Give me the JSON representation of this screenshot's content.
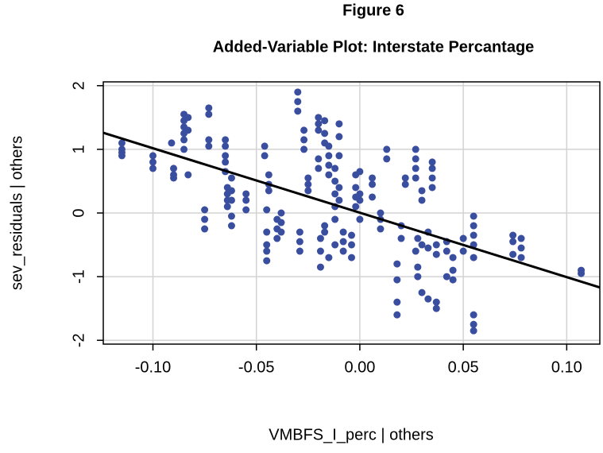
{
  "chart_data": {
    "type": "scatter",
    "title": "Figure 6",
    "subtitle": "Added-Variable Plot: Interstate Percantage",
    "x_label": "VMBFS_I_perc | others",
    "y_label": "sev_residuals  | others",
    "xlim": [
      -0.124,
      0.116
    ],
    "ylim": [
      -2.06,
      2.06
    ],
    "xticks": [
      {
        "value": -0.1,
        "label": "-0.10"
      },
      {
        "value": -0.05,
        "label": "-0.05"
      },
      {
        "value": 0,
        "label": "0.00"
      },
      {
        "value": 0.05,
        "label": "0.05"
      },
      {
        "value": 0.1,
        "label": "0.10"
      }
    ],
    "yticks": [
      -2,
      -1,
      0,
      1,
      2
    ],
    "grid": true,
    "series": [
      {
        "color": "#3a4e9f",
        "x": [
          -0.115,
          -0.115,
          -0.115,
          -0.115,
          -0.1,
          -0.1,
          -0.1,
          -0.091,
          -0.09,
          -0.09,
          -0.09,
          -0.085,
          -0.085,
          -0.085,
          -0.085,
          -0.085,
          -0.085,
          -0.083,
          -0.083,
          -0.083,
          -0.075,
          -0.075,
          -0.075,
          -0.073,
          -0.073,
          -0.073,
          -0.073,
          -0.065,
          -0.065,
          -0.065,
          -0.065,
          -0.065,
          -0.064,
          -0.064,
          -0.064,
          -0.064,
          -0.062,
          -0.062,
          -0.062,
          -0.062,
          -0.062,
          -0.055,
          -0.055,
          -0.055,
          -0.046,
          -0.046,
          -0.045,
          -0.045,
          -0.045,
          -0.045,
          -0.045,
          -0.044,
          -0.044,
          -0.044,
          -0.04,
          -0.04,
          -0.04,
          -0.038,
          -0.038,
          -0.038,
          -0.03,
          -0.03,
          -0.03,
          -0.029,
          -0.029,
          -0.029,
          -0.027,
          -0.027,
          -0.027,
          -0.025,
          -0.025,
          -0.025,
          -0.02,
          -0.02,
          -0.02,
          -0.02,
          -0.02,
          -0.019,
          -0.019,
          -0.019,
          -0.017,
          -0.017,
          -0.017,
          -0.017,
          -0.017,
          -0.015,
          -0.015,
          -0.015,
          -0.015,
          -0.015,
          -0.012,
          -0.012,
          -0.012,
          -0.012,
          -0.012,
          -0.012,
          -0.01,
          -0.01,
          -0.01,
          -0.01,
          -0.01,
          -0.008,
          -0.008,
          -0.008,
          -0.004,
          -0.004,
          -0.004,
          -0.002,
          -0.002,
          -0.002,
          -0.002,
          0,
          0,
          0,
          0,
          0.006,
          0.006,
          0.006,
          0.01,
          0.01,
          0.01,
          0.013,
          0.013,
          0.018,
          0.018,
          0.018,
          0.018,
          0.02,
          0.02,
          0.022,
          0.022,
          0.027,
          0.027,
          0.027,
          0.027,
          0.027,
          0.028,
          0.028,
          0.028,
          0.03,
          0.03,
          0.03,
          0.03,
          0.033,
          0.033,
          0.033,
          0.035,
          0.035,
          0.035,
          0.035,
          0.037,
          0.037,
          0.037,
          0.037,
          0.042,
          0.042,
          0.042,
          0.045,
          0.045,
          0.045,
          0.05,
          0.05,
          0.055,
          0.055,
          0.055,
          0.055,
          0.055,
          0.055,
          0.055,
          0.055,
          0.074,
          0.074,
          0.074,
          0.078,
          0.078,
          0.078,
          0.107,
          0.107
        ],
        "values": [
          1.1,
          1.0,
          0.95,
          0.9,
          0.9,
          0.8,
          0.7,
          1.1,
          0.7,
          0.6,
          0.55,
          1.55,
          1.45,
          1.35,
          1.25,
          1.15,
          1.0,
          1.5,
          1.3,
          0.6,
          0.05,
          -0.1,
          -0.25,
          1.65,
          1.55,
          1.15,
          1.05,
          1.15,
          1.05,
          0.9,
          0.8,
          0.65,
          0.4,
          0.3,
          0.2,
          0.1,
          0.55,
          0.35,
          0.2,
          -0.05,
          -0.2,
          0.3,
          0.2,
          0.05,
          1.05,
          0.9,
          -0.3,
          -0.5,
          -0.6,
          -0.75,
          0.05,
          0.6,
          0.45,
          0.35,
          -0.1,
          -0.25,
          -0.4,
          0.0,
          -0.15,
          -0.3,
          1.9,
          1.75,
          1.6,
          -0.3,
          -0.45,
          -0.6,
          1.3,
          1.15,
          1.0,
          0.55,
          0.45,
          0.35,
          1.5,
          1.4,
          1.3,
          0.85,
          0.7,
          -0.4,
          -0.6,
          -0.85,
          1.45,
          1.25,
          1.1,
          -0.2,
          -0.3,
          1.05,
          0.9,
          0.75,
          0.6,
          -0.7,
          0.7,
          0.5,
          0.3,
          0.1,
          -0.1,
          -0.5,
          1.4,
          1.2,
          0.9,
          0.4,
          0.2,
          -0.3,
          -0.45,
          -0.6,
          -0.35,
          -0.5,
          -0.7,
          0.6,
          0.4,
          0.25,
          0.1,
          0.3,
          0.2,
          -0.1,
          0.65,
          0.55,
          0.45,
          0.25,
          0.0,
          -0.1,
          -0.25,
          1.0,
          0.85,
          -0.8,
          -1.05,
          -1.4,
          -1.6,
          -0.2,
          -0.4,
          0.55,
          0.45,
          1.0,
          0.85,
          0.7,
          0.55,
          -0.6,
          -0.4,
          -0.85,
          -1.0,
          -0.5,
          -1.25,
          0.35,
          0.2,
          -0.3,
          -0.55,
          -1.35,
          0.8,
          0.7,
          0.55,
          0.4,
          -0.5,
          -0.65,
          -1.4,
          -1.5,
          -0.45,
          -0.6,
          -1.0,
          -0.7,
          -0.9,
          -1.05,
          -0.4,
          -0.6,
          -0.05,
          -0.2,
          -0.35,
          -0.5,
          -0.7,
          -1.6,
          -1.75,
          -1.85,
          -0.35,
          -0.45,
          -0.65,
          -0.4,
          -0.55,
          -0.7,
          -0.9,
          -0.95
        ]
      }
    ],
    "fit": {
      "color": "#000000",
      "x": [
        -0.124,
        0.116
      ],
      "y": [
        1.26,
        -1.17
      ]
    }
  }
}
